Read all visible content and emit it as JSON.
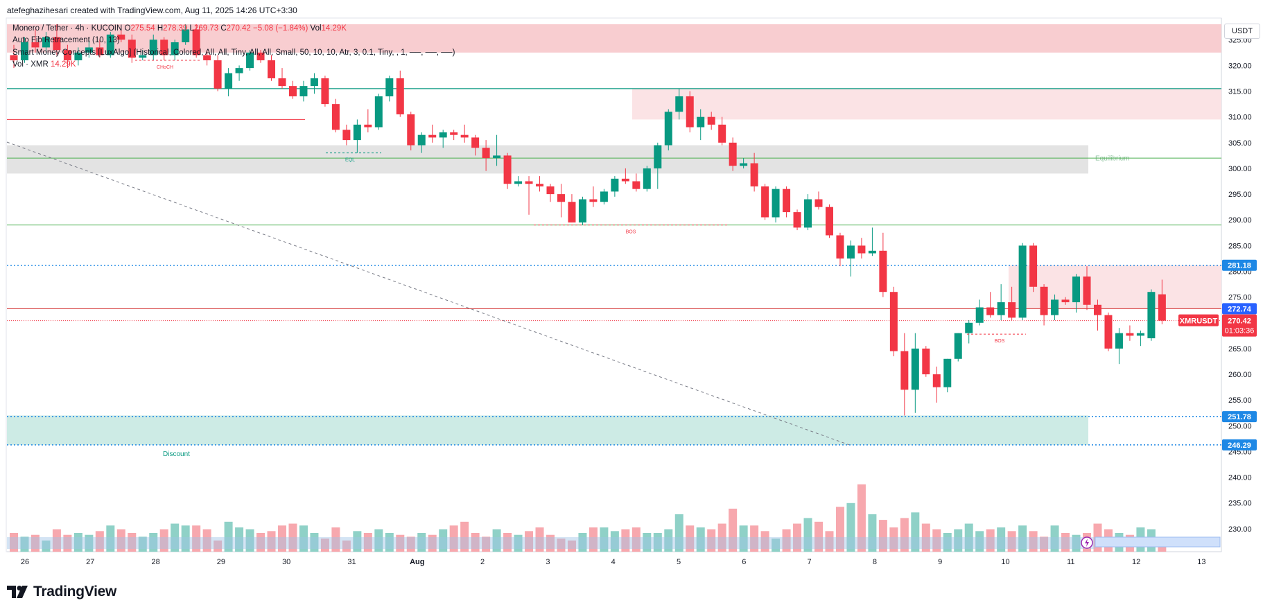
{
  "header": {
    "credit": "atefeghazihesari created with TradingView.com, Aug 11, 2025 14:26 UTC+3:30"
  },
  "legend": {
    "symbol_line": {
      "name": "Monero / Tether · 4h · KUCOIN",
      "open_label": "O",
      "open": "275.54",
      "high_label": "H",
      "high": "278.39",
      "low_label": "L",
      "low": "269.73",
      "close_label": "C",
      "close": "270.42",
      "change": "−5.08 (−1.84%)",
      "vol_label": "Vol",
      "vol": "14.29K"
    },
    "indicator_1": "Auto Fib Retracement (10, 13)",
    "indicator_2": "Smart Money Concepts [LuxAlgo] (Historical, Colored, All, All, Tiny, All, All, Small, 50, 10, 10, Atr, 3, 0.1, Tiny, , 1, ──, ──, ──)",
    "indicator_3_name": "Vol · XMR",
    "indicator_3_value": "14.29K"
  },
  "currency": "USDT",
  "footer": {
    "brand": "TradingView"
  },
  "colors": {
    "up": "#089981",
    "down": "#f23645",
    "up_volume": "#8fd1c7",
    "down_volume": "#f7a8ae",
    "premium_zone": "#f8cdd0",
    "supply_zone": "#fbe3e5",
    "equilibrium_zone": "#e3e3e3",
    "discount_zone": "#cdebe5",
    "blue_level": "#2962ff",
    "accent_blue": "#1e88e5"
  },
  "chart_data": {
    "type": "candlestick",
    "symbol": "XMRUSDT",
    "timeframe": "4h",
    "ylim": [
      225,
      328
    ],
    "y_ticks": [
      "230.00",
      "235.00",
      "240.00",
      "245.00",
      "250.00",
      "255.00",
      "260.00",
      "265.00",
      "270.00",
      "275.00",
      "280.00",
      "285.00",
      "290.00",
      "295.00",
      "300.00",
      "305.00",
      "310.00",
      "315.00",
      "320.00",
      "325.00"
    ],
    "x_ticks": [
      {
        "label": "26",
        "day": 26
      },
      {
        "label": "27",
        "day": 27
      },
      {
        "label": "28",
        "day": 28
      },
      {
        "label": "29",
        "day": 29
      },
      {
        "label": "30",
        "day": 30
      },
      {
        "label": "31",
        "day": 31
      },
      {
        "label": "Aug",
        "day": 32
      },
      {
        "label": "2",
        "day": 33
      },
      {
        "label": "3",
        "day": 34
      },
      {
        "label": "4",
        "day": 35
      },
      {
        "label": "5",
        "day": 36
      },
      {
        "label": "6",
        "day": 37
      },
      {
        "label": "7",
        "day": 38
      },
      {
        "label": "8",
        "day": 39
      },
      {
        "label": "9",
        "day": 40
      },
      {
        "label": "10",
        "day": 41
      },
      {
        "label": "11",
        "day": 42
      },
      {
        "label": "12",
        "day": 43
      },
      {
        "label": "13",
        "day": 44
      }
    ],
    "candles": [
      {
        "o": 322.0,
        "h": 324.0,
        "l": 319.5,
        "c": 321.0
      },
      {
        "o": 321.0,
        "h": 325.5,
        "l": 320.5,
        "c": 324.5
      },
      {
        "o": 324.5,
        "h": 327.0,
        "l": 322.5,
        "c": 323.5
      },
      {
        "o": 323.5,
        "h": 326.5,
        "l": 322.5,
        "c": 325.5
      },
      {
        "o": 325.5,
        "h": 328.0,
        "l": 322.0,
        "c": 323.0
      },
      {
        "o": 323.0,
        "h": 324.0,
        "l": 319.5,
        "c": 321.0
      },
      {
        "o": 321.0,
        "h": 323.5,
        "l": 320.0,
        "c": 322.5
      },
      {
        "o": 322.5,
        "h": 325.0,
        "l": 321.5,
        "c": 323.5
      },
      {
        "o": 323.5,
        "h": 325.0,
        "l": 321.5,
        "c": 322.0
      },
      {
        "o": 322.0,
        "h": 326.5,
        "l": 321.5,
        "c": 326.0
      },
      {
        "o": 326.0,
        "h": 327.0,
        "l": 324.5,
        "c": 325.0
      },
      {
        "o": 325.0,
        "h": 326.0,
        "l": 320.5,
        "c": 321.5
      },
      {
        "o": 321.5,
        "h": 323.0,
        "l": 321.0,
        "c": 322.0
      },
      {
        "o": 322.0,
        "h": 326.0,
        "l": 321.0,
        "c": 325.0
      },
      {
        "o": 325.0,
        "h": 325.5,
        "l": 321.0,
        "c": 322.0
      },
      {
        "o": 322.0,
        "h": 325.0,
        "l": 321.0,
        "c": 324.5
      },
      {
        "o": 324.5,
        "h": 328.0,
        "l": 324.0,
        "c": 327.0
      },
      {
        "o": 327.0,
        "h": 328.0,
        "l": 321.5,
        "c": 322.0
      },
      {
        "o": 322.0,
        "h": 323.0,
        "l": 320.0,
        "c": 321.0
      },
      {
        "o": 321.0,
        "h": 322.0,
        "l": 315.0,
        "c": 315.5
      },
      {
        "o": 315.5,
        "h": 319.5,
        "l": 314.0,
        "c": 318.5
      },
      {
        "o": 318.5,
        "h": 320.0,
        "l": 317.0,
        "c": 319.5
      },
      {
        "o": 319.5,
        "h": 323.0,
        "l": 319.0,
        "c": 322.5
      },
      {
        "o": 322.5,
        "h": 323.0,
        "l": 320.5,
        "c": 321.0
      },
      {
        "o": 321.0,
        "h": 322.0,
        "l": 317.0,
        "c": 317.5
      },
      {
        "o": 317.5,
        "h": 319.5,
        "l": 315.5,
        "c": 316.0
      },
      {
        "o": 316.0,
        "h": 317.0,
        "l": 313.5,
        "c": 314.0
      },
      {
        "o": 314.0,
        "h": 317.0,
        "l": 313.0,
        "c": 316.0
      },
      {
        "o": 316.0,
        "h": 318.5,
        "l": 314.5,
        "c": 317.5
      },
      {
        "o": 317.5,
        "h": 318.0,
        "l": 312.0,
        "c": 312.5
      },
      {
        "o": 312.5,
        "h": 313.5,
        "l": 307.0,
        "c": 307.5
      },
      {
        "o": 307.5,
        "h": 308.5,
        "l": 304.5,
        "c": 305.5
      },
      {
        "o": 305.5,
        "h": 309.5,
        "l": 303.0,
        "c": 308.5
      },
      {
        "o": 308.5,
        "h": 311.5,
        "l": 307.0,
        "c": 308.0
      },
      {
        "o": 308.0,
        "h": 314.5,
        "l": 307.5,
        "c": 314.0
      },
      {
        "o": 314.0,
        "h": 318.0,
        "l": 313.0,
        "c": 317.5
      },
      {
        "o": 317.5,
        "h": 319.0,
        "l": 310.0,
        "c": 310.5
      },
      {
        "o": 310.5,
        "h": 311.0,
        "l": 303.5,
        "c": 304.5
      },
      {
        "o": 304.5,
        "h": 307.0,
        "l": 303.0,
        "c": 306.5
      },
      {
        "o": 306.5,
        "h": 308.5,
        "l": 305.0,
        "c": 306.0
      },
      {
        "o": 306.0,
        "h": 307.5,
        "l": 304.0,
        "c": 307.0
      },
      {
        "o": 307.0,
        "h": 307.5,
        "l": 305.5,
        "c": 306.5
      },
      {
        "o": 306.5,
        "h": 308.5,
        "l": 305.0,
        "c": 306.0
      },
      {
        "o": 306.0,
        "h": 306.5,
        "l": 302.5,
        "c": 304.0
      },
      {
        "o": 304.0,
        "h": 305.5,
        "l": 299.5,
        "c": 302.0
      },
      {
        "o": 302.0,
        "h": 306.5,
        "l": 300.5,
        "c": 302.5
      },
      {
        "o": 302.5,
        "h": 303.0,
        "l": 296.0,
        "c": 297.0
      },
      {
        "o": 297.0,
        "h": 298.5,
        "l": 296.5,
        "c": 297.5
      },
      {
        "o": 297.5,
        "h": 298.5,
        "l": 291.0,
        "c": 297.0
      },
      {
        "o": 297.0,
        "h": 298.5,
        "l": 295.5,
        "c": 296.5
      },
      {
        "o": 296.5,
        "h": 297.0,
        "l": 293.5,
        "c": 295.0
      },
      {
        "o": 295.0,
        "h": 297.0,
        "l": 290.5,
        "c": 293.5
      },
      {
        "o": 293.5,
        "h": 295.0,
        "l": 289.5,
        "c": 289.5
      },
      {
        "o": 289.5,
        "h": 294.5,
        "l": 289.0,
        "c": 294.0
      },
      {
        "o": 294.0,
        "h": 296.5,
        "l": 292.5,
        "c": 293.5
      },
      {
        "o": 293.5,
        "h": 296.0,
        "l": 293.0,
        "c": 295.5
      },
      {
        "o": 295.5,
        "h": 298.5,
        "l": 294.5,
        "c": 298.0
      },
      {
        "o": 298.0,
        "h": 300.0,
        "l": 297.0,
        "c": 297.5
      },
      {
        "o": 297.5,
        "h": 299.0,
        "l": 295.5,
        "c": 296.0
      },
      {
        "o": 296.0,
        "h": 300.5,
        "l": 295.5,
        "c": 300.0
      },
      {
        "o": 300.0,
        "h": 305.0,
        "l": 296.0,
        "c": 304.5
      },
      {
        "o": 304.5,
        "h": 311.5,
        "l": 303.5,
        "c": 311.0
      },
      {
        "o": 311.0,
        "h": 315.5,
        "l": 309.5,
        "c": 314.0
      },
      {
        "o": 314.0,
        "h": 315.0,
        "l": 307.0,
        "c": 308.0
      },
      {
        "o": 308.0,
        "h": 311.5,
        "l": 305.5,
        "c": 310.0
      },
      {
        "o": 310.0,
        "h": 311.0,
        "l": 307.5,
        "c": 308.5
      },
      {
        "o": 308.5,
        "h": 310.0,
        "l": 304.5,
        "c": 305.0
      },
      {
        "o": 305.0,
        "h": 306.0,
        "l": 299.5,
        "c": 300.5
      },
      {
        "o": 300.5,
        "h": 302.0,
        "l": 300.0,
        "c": 301.0
      },
      {
        "o": 301.0,
        "h": 303.0,
        "l": 295.5,
        "c": 296.5
      },
      {
        "o": 296.5,
        "h": 297.0,
        "l": 290.0,
        "c": 290.5
      },
      {
        "o": 290.5,
        "h": 296.5,
        "l": 289.5,
        "c": 296.0
      },
      {
        "o": 296.0,
        "h": 296.5,
        "l": 290.5,
        "c": 291.5
      },
      {
        "o": 291.5,
        "h": 292.0,
        "l": 288.0,
        "c": 288.5
      },
      {
        "o": 288.5,
        "h": 295.0,
        "l": 288.0,
        "c": 294.0
      },
      {
        "o": 294.0,
        "h": 295.5,
        "l": 292.0,
        "c": 292.5
      },
      {
        "o": 292.5,
        "h": 293.0,
        "l": 286.5,
        "c": 287.0
      },
      {
        "o": 287.0,
        "h": 287.5,
        "l": 281.0,
        "c": 282.5
      },
      {
        "o": 282.5,
        "h": 286.0,
        "l": 279.0,
        "c": 285.0
      },
      {
        "o": 285.0,
        "h": 286.5,
        "l": 282.5,
        "c": 283.5
      },
      {
        "o": 283.5,
        "h": 288.5,
        "l": 283.0,
        "c": 284.0
      },
      {
        "o": 284.0,
        "h": 287.5,
        "l": 275.0,
        "c": 276.0
      },
      {
        "o": 276.0,
        "h": 277.0,
        "l": 263.5,
        "c": 264.5
      },
      {
        "o": 264.5,
        "h": 268.0,
        "l": 252.0,
        "c": 257.0
      },
      {
        "o": 257.0,
        "h": 268.0,
        "l": 252.5,
        "c": 265.0
      },
      {
        "o": 265.0,
        "h": 265.5,
        "l": 259.5,
        "c": 260.0
      },
      {
        "o": 260.0,
        "h": 261.5,
        "l": 254.5,
        "c": 257.5
      },
      {
        "o": 257.5,
        "h": 263.0,
        "l": 256.5,
        "c": 263.0
      },
      {
        "o": 263.0,
        "h": 268.0,
        "l": 262.5,
        "c": 268.0
      },
      {
        "o": 268.0,
        "h": 270.5,
        "l": 266.0,
        "c": 270.0
      },
      {
        "o": 270.0,
        "h": 274.5,
        "l": 269.5,
        "c": 273.0
      },
      {
        "o": 273.0,
        "h": 276.0,
        "l": 271.0,
        "c": 271.5
      },
      {
        "o": 271.5,
        "h": 277.5,
        "l": 270.5,
        "c": 274.0
      },
      {
        "o": 274.0,
        "h": 277.0,
        "l": 270.5,
        "c": 271.0
      },
      {
        "o": 271.0,
        "h": 285.5,
        "l": 270.5,
        "c": 285.0
      },
      {
        "o": 285.0,
        "h": 285.5,
        "l": 276.0,
        "c": 277.0
      },
      {
        "o": 277.0,
        "h": 277.5,
        "l": 269.5,
        "c": 271.5
      },
      {
        "o": 271.5,
        "h": 275.5,
        "l": 270.5,
        "c": 274.5
      },
      {
        "o": 274.5,
        "h": 275.0,
        "l": 273.5,
        "c": 274.0
      },
      {
        "o": 274.0,
        "h": 279.5,
        "l": 272.0,
        "c": 279.0
      },
      {
        "o": 279.0,
        "h": 281.0,
        "l": 272.5,
        "c": 273.5
      },
      {
        "o": 273.5,
        "h": 274.5,
        "l": 268.5,
        "c": 271.5
      },
      {
        "o": 271.5,
        "h": 272.0,
        "l": 264.5,
        "c": 265.0
      },
      {
        "o": 265.0,
        "h": 269.0,
        "l": 262.0,
        "c": 268.0
      },
      {
        "o": 268.0,
        "h": 269.5,
        "l": 266.5,
        "c": 267.5
      },
      {
        "o": 267.5,
        "h": 268.5,
        "l": 265.5,
        "c": 268.0
      },
      {
        "o": 267.0,
        "h": 276.5,
        "l": 266.5,
        "c": 276.0
      },
      {
        "o": 275.54,
        "h": 278.39,
        "l": 269.73,
        "c": 270.42
      }
    ],
    "volumes": [
      1.0,
      0.8,
      0.9,
      0.6,
      1.2,
      0.9,
      1.0,
      0.9,
      1.1,
      1.4,
      1.2,
      1.0,
      0.8,
      1.0,
      1.2,
      1.5,
      1.4,
      1.4,
      1.2,
      0.6,
      1.6,
      1.3,
      1.2,
      1.0,
      1.1,
      1.4,
      1.5,
      1.4,
      1.0,
      0.7,
      1.3,
      0.6,
      1.1,
      1.0,
      1.2,
      1.0,
      0.9,
      0.8,
      1.0,
      0.9,
      1.2,
      1.4,
      1.6,
      1.0,
      0.8,
      1.2,
      1.0,
      0.9,
      1.1,
      1.3,
      0.9,
      0.7,
      0.6,
      1.0,
      1.3,
      1.3,
      1.1,
      1.2,
      1.3,
      1.0,
      1.0,
      1.2,
      2.0,
      1.4,
      1.3,
      1.2,
      1.5,
      2.3,
      1.4,
      1.4,
      1.1,
      0.7,
      1.2,
      1.5,
      1.8,
      1.6,
      1.1,
      2.4,
      2.6,
      3.6,
      2.0,
      1.7,
      1.3,
      1.8,
      2.1,
      1.5,
      1.2,
      1.0,
      1.2,
      1.5,
      1.1,
      1.2,
      1.3,
      1.1,
      1.4,
      1.1,
      0.8,
      1.4,
      1.0,
      0.9,
      1.0,
      1.5,
      1.2,
      1.0,
      0.9,
      1.3,
      1.2,
      0.7
    ],
    "horizontal_levels": [
      {
        "label": "281.18",
        "price": 281.18,
        "style": "dotted"
      },
      {
        "label": "272.74",
        "price": 272.74,
        "style": "solid"
      },
      {
        "label": "251.78",
        "price": 251.78,
        "style": "dotted"
      },
      {
        "label": "246.29",
        "price": 246.29,
        "style": "dotted"
      }
    ],
    "last_price": {
      "symbol": "XMRUSDT",
      "value": "270.42",
      "countdown": "01:03:36"
    },
    "zones": [
      {
        "name": "premium",
        "top": 328,
        "bottom": 322.5
      },
      {
        "name": "supply",
        "top": 315.5,
        "bottom": 309.5
      },
      {
        "name": "equilibrium",
        "top": 304.5,
        "bottom": 299.0,
        "label": "Equilibrium"
      },
      {
        "name": "discount",
        "top": 252.0,
        "bottom": 246.29,
        "label": "Discount"
      },
      {
        "name": "upper-right-supply",
        "top": 281.18,
        "bottom": 272.74
      }
    ],
    "annotations": [
      {
        "text": "CHoCH",
        "price": 321.0
      },
      {
        "text": "EQL",
        "price": 303.0
      },
      {
        "text": "BOS",
        "price": 289.0
      },
      {
        "text": "BOS",
        "price": 267.8
      }
    ],
    "other_lines": [
      {
        "name": "green-upper",
        "price": 315.5,
        "style": "solid"
      },
      {
        "name": "red-upper",
        "price": 309.5,
        "style": "solid"
      },
      {
        "name": "green-equilibrium",
        "price": 302.0,
        "style": "solid"
      },
      {
        "name": "green-mid",
        "price": 289.0,
        "style": "solid"
      },
      {
        "name": "last-price-line",
        "price": 270.42,
        "style": "dotted"
      }
    ]
  }
}
